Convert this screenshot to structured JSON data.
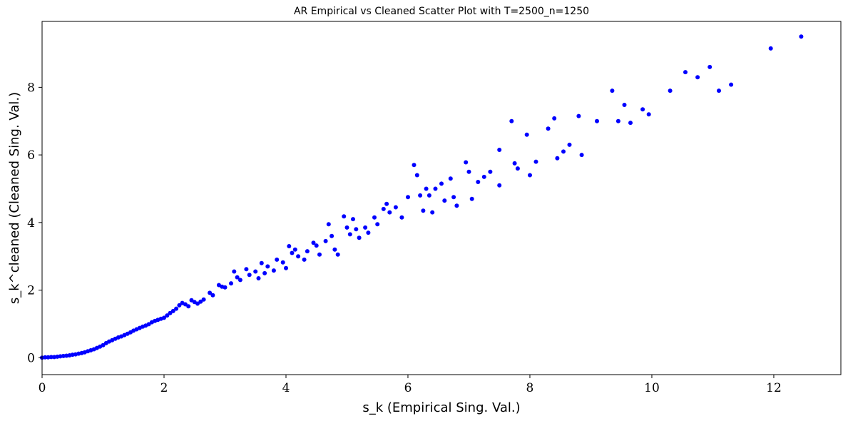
{
  "chart_data": {
    "type": "scatter",
    "title": "AR Empirical vs Cleaned Scatter Plot with T=2500_n=1250",
    "xlabel": "s_k (Empirical Sing. Val.)",
    "ylabel": "s_k^cleaned (Cleaned Sing. Val.)",
    "xlim": [
      0,
      13.1
    ],
    "ylim": [
      -0.5,
      9.95
    ],
    "xticks": [
      0,
      2,
      4,
      6,
      8,
      10,
      12
    ],
    "yticks": [
      0,
      2,
      4,
      6,
      8
    ],
    "grid": false,
    "legend": "none",
    "marker_color": "#0000ff",
    "series": [
      {
        "points": [
          [
            0.0,
            0.0
          ],
          [
            0.05,
            0.01
          ],
          [
            0.1,
            0.01
          ],
          [
            0.15,
            0.02
          ],
          [
            0.2,
            0.02
          ],
          [
            0.25,
            0.03
          ],
          [
            0.3,
            0.04
          ],
          [
            0.35,
            0.05
          ],
          [
            0.4,
            0.06
          ],
          [
            0.45,
            0.07
          ],
          [
            0.5,
            0.09
          ],
          [
            0.55,
            0.1
          ],
          [
            0.6,
            0.12
          ],
          [
            0.65,
            0.14
          ],
          [
            0.7,
            0.16
          ],
          [
            0.75,
            0.19
          ],
          [
            0.8,
            0.22
          ],
          [
            0.85,
            0.25
          ],
          [
            0.9,
            0.29
          ],
          [
            0.95,
            0.33
          ],
          [
            1.0,
            0.37
          ],
          [
            1.05,
            0.43
          ],
          [
            1.1,
            0.48
          ],
          [
            1.15,
            0.52
          ],
          [
            1.2,
            0.56
          ],
          [
            1.25,
            0.6
          ],
          [
            1.3,
            0.63
          ],
          [
            1.35,
            0.67
          ],
          [
            1.4,
            0.71
          ],
          [
            1.45,
            0.75
          ],
          [
            1.5,
            0.8
          ],
          [
            1.55,
            0.84
          ],
          [
            1.6,
            0.88
          ],
          [
            1.65,
            0.92
          ],
          [
            1.7,
            0.95
          ],
          [
            1.75,
            0.99
          ],
          [
            1.8,
            1.05
          ],
          [
            1.85,
            1.09
          ],
          [
            1.9,
            1.12
          ],
          [
            1.95,
            1.15
          ],
          [
            2.0,
            1.18
          ],
          [
            2.05,
            1.25
          ],
          [
            2.1,
            1.32
          ],
          [
            2.15,
            1.38
          ],
          [
            2.2,
            1.45
          ],
          [
            2.25,
            1.55
          ],
          [
            2.3,
            1.62
          ],
          [
            2.35,
            1.58
          ],
          [
            2.4,
            1.52
          ],
          [
            2.45,
            1.7
          ],
          [
            2.5,
            1.65
          ],
          [
            2.55,
            1.6
          ],
          [
            2.6,
            1.66
          ],
          [
            2.65,
            1.72
          ],
          [
            2.75,
            1.92
          ],
          [
            2.8,
            1.85
          ],
          [
            2.9,
            2.15
          ],
          [
            2.95,
            2.1
          ],
          [
            3.0,
            2.08
          ],
          [
            3.1,
            2.2
          ],
          [
            3.15,
            2.55
          ],
          [
            3.2,
            2.38
          ],
          [
            3.25,
            2.3
          ],
          [
            3.35,
            2.62
          ],
          [
            3.4,
            2.45
          ],
          [
            3.5,
            2.55
          ],
          [
            3.55,
            2.35
          ],
          [
            3.6,
            2.8
          ],
          [
            3.65,
            2.5
          ],
          [
            3.7,
            2.7
          ],
          [
            3.8,
            2.58
          ],
          [
            3.85,
            2.9
          ],
          [
            3.95,
            2.82
          ],
          [
            4.0,
            2.65
          ],
          [
            4.05,
            3.3
          ],
          [
            4.1,
            3.1
          ],
          [
            4.15,
            3.2
          ],
          [
            4.2,
            3.0
          ],
          [
            4.3,
            2.9
          ],
          [
            4.35,
            3.15
          ],
          [
            4.45,
            3.4
          ],
          [
            4.5,
            3.32
          ],
          [
            4.55,
            3.05
          ],
          [
            4.65,
            3.45
          ],
          [
            4.7,
            3.95
          ],
          [
            4.75,
            3.6
          ],
          [
            4.8,
            3.2
          ],
          [
            4.85,
            3.05
          ],
          [
            4.95,
            4.18
          ],
          [
            5.0,
            3.85
          ],
          [
            5.05,
            3.65
          ],
          [
            5.1,
            4.1
          ],
          [
            5.15,
            3.8
          ],
          [
            5.2,
            3.55
          ],
          [
            5.3,
            3.85
          ],
          [
            5.35,
            3.7
          ],
          [
            5.45,
            4.15
          ],
          [
            5.5,
            3.95
          ],
          [
            5.6,
            4.4
          ],
          [
            5.65,
            4.55
          ],
          [
            5.7,
            4.3
          ],
          [
            5.8,
            4.45
          ],
          [
            5.9,
            4.15
          ],
          [
            6.0,
            4.75
          ],
          [
            6.1,
            5.7
          ],
          [
            6.15,
            5.4
          ],
          [
            6.2,
            4.8
          ],
          [
            6.25,
            4.35
          ],
          [
            6.3,
            5.0
          ],
          [
            6.35,
            4.8
          ],
          [
            6.4,
            4.3
          ],
          [
            6.45,
            5.0
          ],
          [
            6.55,
            5.15
          ],
          [
            6.6,
            4.65
          ],
          [
            6.7,
            5.3
          ],
          [
            6.75,
            4.75
          ],
          [
            6.8,
            4.5
          ],
          [
            6.95,
            5.78
          ],
          [
            7.0,
            5.5
          ],
          [
            7.05,
            4.7
          ],
          [
            7.15,
            5.2
          ],
          [
            7.25,
            5.35
          ],
          [
            7.35,
            5.5
          ],
          [
            7.5,
            6.15
          ],
          [
            7.5,
            5.1
          ],
          [
            7.7,
            7.0
          ],
          [
            7.75,
            5.75
          ],
          [
            7.8,
            5.6
          ],
          [
            7.95,
            6.6
          ],
          [
            8.0,
            5.4
          ],
          [
            8.1,
            5.8
          ],
          [
            8.3,
            6.78
          ],
          [
            8.4,
            7.08
          ],
          [
            8.45,
            5.9
          ],
          [
            8.55,
            6.1
          ],
          [
            8.65,
            6.3
          ],
          [
            8.8,
            7.15
          ],
          [
            8.85,
            6.0
          ],
          [
            9.1,
            7.0
          ],
          [
            9.35,
            7.9
          ],
          [
            9.45,
            7.0
          ],
          [
            9.55,
            7.48
          ],
          [
            9.65,
            6.95
          ],
          [
            9.85,
            7.35
          ],
          [
            9.95,
            7.2
          ],
          [
            10.3,
            7.9
          ],
          [
            10.55,
            8.45
          ],
          [
            10.75,
            8.3
          ],
          [
            10.95,
            8.6
          ],
          [
            11.1,
            7.9
          ],
          [
            11.3,
            8.08
          ],
          [
            11.95,
            9.15
          ],
          [
            12.45,
            9.5
          ]
        ]
      }
    ]
  }
}
